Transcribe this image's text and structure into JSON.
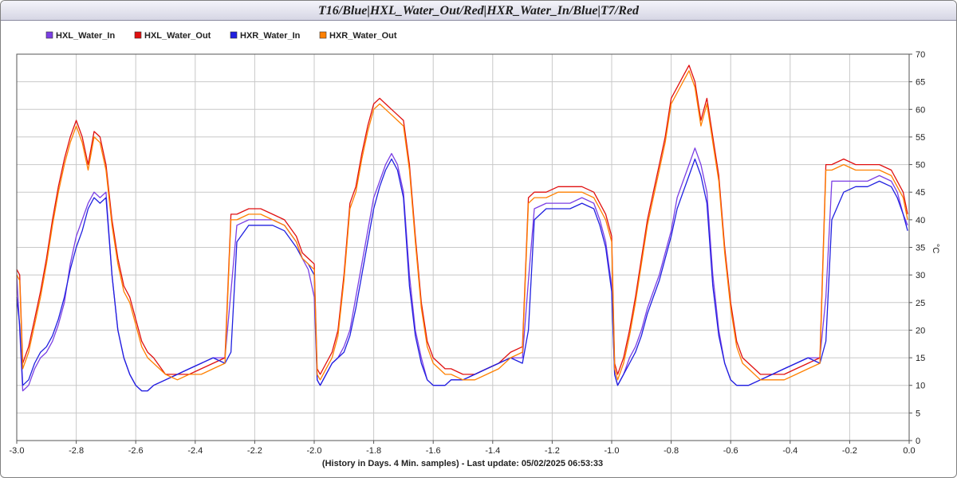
{
  "title": "T16/Blue|HXL_Water_Out/Red|HXR_Water_In/Blue|T7/Red",
  "chart_data": {
    "type": "line",
    "title": "T16/Blue|HXL_Water_Out/Red|HXR_Water_In/Blue|T7/Red",
    "xlabel": "(History in Days. 4 Min. samples) - Last update: 05/02/2025 06:53:33",
    "ylabel": "°C",
    "xlim": [
      -3.0,
      0.0
    ],
    "ylim": [
      0,
      70
    ],
    "xticks": [
      "-3.0",
      "-2.8",
      "-2.6",
      "-2.4",
      "-2.2",
      "-2.0",
      "-1.8",
      "-1.6",
      "-1.4",
      "-1.2",
      "-1.0",
      "-0.8",
      "-0.6",
      "-0.4",
      "-0.2",
      "0.0"
    ],
    "yticks": [
      "0",
      "5",
      "10",
      "15",
      "20",
      "25",
      "30",
      "35",
      "40",
      "45",
      "50",
      "55",
      "60",
      "65",
      "70"
    ],
    "grid": true,
    "legend_position": "top-left",
    "series": [
      {
        "name": "HXL_Water_In",
        "color": "#7b3fe4",
        "x": [
          -3.0,
          -2.99,
          -2.98,
          -2.96,
          -2.94,
          -2.92,
          -2.9,
          -2.88,
          -2.86,
          -2.84,
          -2.82,
          -2.8,
          -2.78,
          -2.76,
          -2.74,
          -2.72,
          -2.7,
          -2.68,
          -2.66,
          -2.64,
          -2.62,
          -2.6,
          -2.58,
          -2.56,
          -2.54,
          -2.5,
          -2.46,
          -2.42,
          -2.38,
          -2.34,
          -2.3,
          -2.28,
          -2.26,
          -2.22,
          -2.18,
          -2.14,
          -2.1,
          -2.06,
          -2.04,
          -2.02,
          -2.0,
          -1.99,
          -1.98,
          -1.96,
          -1.94,
          -1.92,
          -1.9,
          -1.88,
          -1.86,
          -1.84,
          -1.82,
          -1.8,
          -1.78,
          -1.76,
          -1.74,
          -1.72,
          -1.7,
          -1.68,
          -1.66,
          -1.64,
          -1.62,
          -1.6,
          -1.58,
          -1.56,
          -1.54,
          -1.5,
          -1.46,
          -1.42,
          -1.38,
          -1.34,
          -1.3,
          -1.28,
          -1.26,
          -1.22,
          -1.18,
          -1.14,
          -1.1,
          -1.06,
          -1.04,
          -1.02,
          -1.0,
          -0.99,
          -0.98,
          -0.96,
          -0.94,
          -0.92,
          -0.9,
          -0.88,
          -0.86,
          -0.84,
          -0.82,
          -0.8,
          -0.78,
          -0.76,
          -0.74,
          -0.72,
          -0.7,
          -0.68,
          -0.66,
          -0.64,
          -0.62,
          -0.6,
          -0.58,
          -0.56,
          -0.54,
          -0.5,
          -0.46,
          -0.42,
          -0.38,
          -0.34,
          -0.3,
          -0.28,
          -0.26,
          -0.22,
          -0.18,
          -0.14,
          -0.1,
          -0.06,
          -0.04,
          -0.02,
          -0.005
        ],
        "y": [
          30,
          20,
          9,
          10,
          13,
          15,
          16,
          18,
          21,
          25,
          32,
          37,
          40,
          43,
          45,
          44,
          45,
          30,
          20,
          15,
          12,
          10,
          9,
          9,
          10,
          11,
          12,
          13,
          14,
          15,
          15,
          27,
          39,
          40,
          40,
          40,
          39,
          36,
          33,
          31,
          26,
          11,
          10,
          12,
          14,
          15,
          17,
          20,
          26,
          32,
          38,
          44,
          47,
          50,
          52,
          50,
          45,
          30,
          20,
          15,
          11,
          10,
          10,
          10,
          11,
          11,
          12,
          13,
          14,
          15,
          15,
          29,
          42,
          43,
          43,
          43,
          44,
          43,
          40,
          36,
          28,
          12,
          10,
          12,
          15,
          17,
          20,
          24,
          27,
          30,
          34,
          38,
          44,
          47,
          50,
          53,
          50,
          45,
          30,
          20,
          14,
          11,
          10,
          10,
          10,
          11,
          12,
          13,
          14,
          15,
          15,
          26,
          47,
          47,
          47,
          47,
          48,
          47,
          45,
          41,
          39
        ]
      },
      {
        "name": "HXL_Water_Out",
        "color": "#e01010",
        "x": [
          -3.0,
          -2.99,
          -2.98,
          -2.96,
          -2.94,
          -2.92,
          -2.9,
          -2.88,
          -2.86,
          -2.84,
          -2.82,
          -2.8,
          -2.78,
          -2.76,
          -2.74,
          -2.72,
          -2.7,
          -2.68,
          -2.66,
          -2.64,
          -2.62,
          -2.6,
          -2.58,
          -2.56,
          -2.54,
          -2.5,
          -2.46,
          -2.42,
          -2.38,
          -2.34,
          -2.3,
          -2.28,
          -2.26,
          -2.22,
          -2.18,
          -2.14,
          -2.1,
          -2.06,
          -2.04,
          -2.02,
          -2.0,
          -1.99,
          -1.98,
          -1.96,
          -1.94,
          -1.92,
          -1.9,
          -1.88,
          -1.86,
          -1.84,
          -1.82,
          -1.8,
          -1.78,
          -1.76,
          -1.74,
          -1.72,
          -1.7,
          -1.68,
          -1.66,
          -1.64,
          -1.62,
          -1.6,
          -1.58,
          -1.56,
          -1.54,
          -1.5,
          -1.46,
          -1.42,
          -1.38,
          -1.34,
          -1.3,
          -1.28,
          -1.26,
          -1.22,
          -1.18,
          -1.14,
          -1.1,
          -1.06,
          -1.04,
          -1.02,
          -1.0,
          -0.99,
          -0.98,
          -0.96,
          -0.94,
          -0.92,
          -0.9,
          -0.88,
          -0.86,
          -0.84,
          -0.82,
          -0.8,
          -0.78,
          -0.76,
          -0.74,
          -0.72,
          -0.7,
          -0.68,
          -0.66,
          -0.64,
          -0.62,
          -0.6,
          -0.58,
          -0.56,
          -0.54,
          -0.5,
          -0.46,
          -0.42,
          -0.38,
          -0.34,
          -0.3,
          -0.28,
          -0.26,
          -0.22,
          -0.18,
          -0.14,
          -0.1,
          -0.06,
          -0.04,
          -0.02,
          -0.005
        ],
        "y": [
          31,
          30,
          14,
          17,
          22,
          27,
          33,
          40,
          46,
          51,
          55,
          58,
          55,
          50,
          56,
          55,
          50,
          40,
          33,
          28,
          26,
          22,
          18,
          16,
          15,
          12,
          12,
          12,
          13,
          14,
          15,
          41,
          41,
          42,
          42,
          41,
          40,
          37,
          34,
          33,
          32,
          13,
          12,
          14,
          16,
          20,
          30,
          43,
          46,
          52,
          57,
          61,
          62,
          61,
          60,
          59,
          58,
          50,
          37,
          25,
          18,
          15,
          14,
          13,
          13,
          12,
          12,
          13,
          14,
          16,
          17,
          44,
          45,
          45,
          46,
          46,
          46,
          45,
          43,
          41,
          37,
          14,
          12,
          15,
          20,
          26,
          33,
          40,
          45,
          50,
          55,
          62,
          64,
          66,
          68,
          65,
          58,
          62,
          55,
          48,
          35,
          25,
          18,
          15,
          14,
          12,
          12,
          12,
          13,
          14,
          15,
          50,
          50,
          51,
          50,
          50,
          50,
          49,
          47,
          45,
          41
        ]
      },
      {
        "name": "HXR_Water_In",
        "color": "#2020e0",
        "x": [
          -3.0,
          -2.99,
          -2.98,
          -2.96,
          -2.94,
          -2.92,
          -2.9,
          -2.88,
          -2.86,
          -2.84,
          -2.82,
          -2.8,
          -2.78,
          -2.76,
          -2.74,
          -2.72,
          -2.7,
          -2.68,
          -2.66,
          -2.64,
          -2.62,
          -2.6,
          -2.58,
          -2.56,
          -2.54,
          -2.5,
          -2.46,
          -2.42,
          -2.38,
          -2.34,
          -2.3,
          -2.28,
          -2.26,
          -2.22,
          -2.18,
          -2.14,
          -2.1,
          -2.06,
          -2.04,
          -2.02,
          -2.0,
          -1.99,
          -1.98,
          -1.96,
          -1.94,
          -1.92,
          -1.9,
          -1.88,
          -1.86,
          -1.84,
          -1.82,
          -1.8,
          -1.78,
          -1.76,
          -1.74,
          -1.72,
          -1.7,
          -1.68,
          -1.66,
          -1.64,
          -1.62,
          -1.6,
          -1.58,
          -1.56,
          -1.54,
          -1.5,
          -1.46,
          -1.42,
          -1.38,
          -1.34,
          -1.3,
          -1.28,
          -1.26,
          -1.22,
          -1.18,
          -1.14,
          -1.1,
          -1.06,
          -1.04,
          -1.02,
          -1.0,
          -0.99,
          -0.98,
          -0.96,
          -0.94,
          -0.92,
          -0.9,
          -0.88,
          -0.86,
          -0.84,
          -0.82,
          -0.8,
          -0.78,
          -0.76,
          -0.74,
          -0.72,
          -0.7,
          -0.68,
          -0.66,
          -0.64,
          -0.62,
          -0.6,
          -0.58,
          -0.56,
          -0.54,
          -0.5,
          -0.46,
          -0.42,
          -0.38,
          -0.34,
          -0.3,
          -0.28,
          -0.26,
          -0.22,
          -0.18,
          -0.14,
          -0.1,
          -0.06,
          -0.04,
          -0.02,
          -0.005
        ],
        "y": [
          26,
          21,
          10,
          11,
          14,
          16,
          17,
          19,
          22,
          26,
          31,
          35,
          38,
          42,
          44,
          43,
          44,
          30,
          20,
          15,
          12,
          10,
          9,
          9,
          10,
          11,
          12,
          13,
          14,
          15,
          14,
          16,
          36,
          39,
          39,
          39,
          38,
          35,
          33,
          32,
          30,
          11,
          10,
          12,
          14,
          15,
          16,
          19,
          24,
          30,
          36,
          42,
          46,
          49,
          51,
          49,
          44,
          28,
          19,
          14,
          11,
          10,
          10,
          10,
          11,
          11,
          12,
          13,
          14,
          15,
          14,
          20,
          40,
          42,
          42,
          42,
          43,
          42,
          39,
          35,
          27,
          12,
          10,
          12,
          14,
          16,
          19,
          23,
          26,
          29,
          33,
          37,
          42,
          45,
          48,
          51,
          48,
          43,
          28,
          19,
          14,
          11,
          10,
          10,
          10,
          11,
          12,
          13,
          14,
          15,
          14,
          18,
          40,
          45,
          46,
          46,
          47,
          46,
          44,
          41,
          38
        ]
      },
      {
        "name": "HXR_Water_Out",
        "color": "#ff8000",
        "x": [
          -3.0,
          -2.99,
          -2.98,
          -2.96,
          -2.94,
          -2.92,
          -2.9,
          -2.88,
          -2.86,
          -2.84,
          -2.82,
          -2.8,
          -2.78,
          -2.76,
          -2.74,
          -2.72,
          -2.7,
          -2.68,
          -2.66,
          -2.64,
          -2.62,
          -2.6,
          -2.58,
          -2.56,
          -2.54,
          -2.5,
          -2.46,
          -2.42,
          -2.38,
          -2.34,
          -2.3,
          -2.28,
          -2.26,
          -2.22,
          -2.18,
          -2.14,
          -2.1,
          -2.06,
          -2.04,
          -2.02,
          -2.0,
          -1.99,
          -1.98,
          -1.96,
          -1.94,
          -1.92,
          -1.9,
          -1.88,
          -1.86,
          -1.84,
          -1.82,
          -1.8,
          -1.78,
          -1.76,
          -1.74,
          -1.72,
          -1.7,
          -1.68,
          -1.66,
          -1.64,
          -1.62,
          -1.6,
          -1.58,
          -1.56,
          -1.54,
          -1.5,
          -1.46,
          -1.42,
          -1.38,
          -1.34,
          -1.3,
          -1.28,
          -1.26,
          -1.22,
          -1.18,
          -1.14,
          -1.1,
          -1.06,
          -1.04,
          -1.02,
          -1.0,
          -0.99,
          -0.98,
          -0.96,
          -0.94,
          -0.92,
          -0.9,
          -0.88,
          -0.86,
          -0.84,
          -0.82,
          -0.8,
          -0.78,
          -0.76,
          -0.74,
          -0.72,
          -0.7,
          -0.68,
          -0.66,
          -0.64,
          -0.62,
          -0.6,
          -0.58,
          -0.56,
          -0.54,
          -0.5,
          -0.46,
          -0.42,
          -0.38,
          -0.34,
          -0.3,
          -0.28,
          -0.26,
          -0.22,
          -0.18,
          -0.14,
          -0.1,
          -0.06,
          -0.04,
          -0.02,
          -0.005
        ],
        "y": [
          30,
          29,
          13,
          16,
          21,
          26,
          32,
          39,
          45,
          50,
          54,
          57,
          54,
          49,
          55,
          54,
          49,
          39,
          32,
          27,
          25,
          21,
          17,
          15,
          14,
          12,
          11,
          12,
          12,
          13,
          14,
          40,
          40,
          41,
          41,
          40,
          39,
          36,
          33,
          32,
          31,
          12,
          11,
          13,
          15,
          19,
          29,
          42,
          45,
          51,
          56,
          60,
          61,
          60,
          59,
          58,
          57,
          49,
          36,
          24,
          17,
          14,
          13,
          12,
          12,
          11,
          11,
          12,
          13,
          15,
          16,
          43,
          44,
          44,
          45,
          45,
          45,
          44,
          42,
          40,
          36,
          13,
          11,
          14,
          19,
          25,
          32,
          39,
          44,
          49,
          54,
          61,
          63,
          65,
          67,
          64,
          57,
          61,
          54,
          47,
          34,
          24,
          17,
          14,
          13,
          11,
          11,
          11,
          12,
          13,
          14,
          49,
          49,
          50,
          49,
          49,
          49,
          48,
          46,
          44,
          40
        ]
      }
    ]
  }
}
